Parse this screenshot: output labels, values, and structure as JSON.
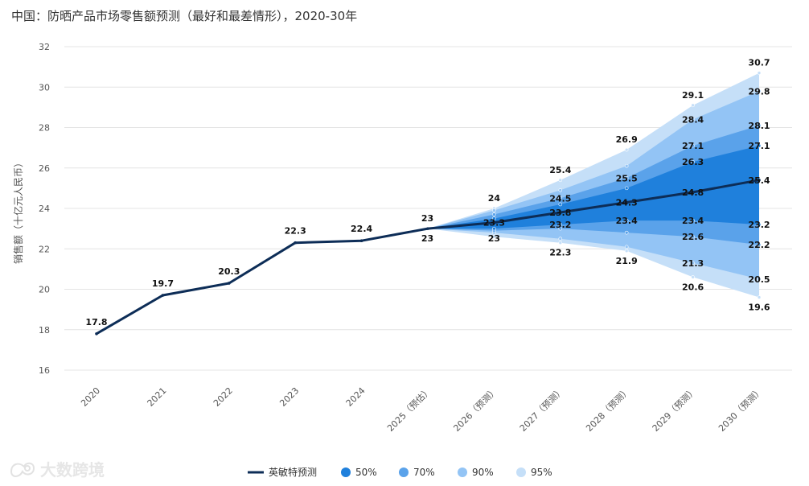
{
  "chart_data": {
    "type": "area",
    "title": "中国：防晒产品市场零售额预测（最好和最差情形），2020-30年",
    "ylabel": "销售额（十亿元人民币）",
    "xlabel": "",
    "ylim": [
      16,
      32
    ],
    "yticks": [
      16,
      18,
      20,
      22,
      24,
      26,
      28,
      30,
      32
    ],
    "grid": true,
    "legend_position": "bottom",
    "categories": [
      "2020",
      "2021",
      "2022",
      "2023",
      "2024",
      "2025（预估）",
      "2026（预测）",
      "2027（预测）",
      "2028（预测）",
      "2029（预测）",
      "2030（预测）"
    ],
    "series": [
      {
        "name": "英敏特预测",
        "values": [
          17.8,
          19.7,
          20.3,
          22.3,
          22.4,
          23,
          23.3,
          23.8,
          24.3,
          24.8,
          25.4
        ]
      }
    ],
    "fan_bands": [
      {
        "name": "95%",
        "color": "#c5dff8",
        "upper": [
          null,
          null,
          null,
          null,
          null,
          23,
          24,
          25.4,
          26.9,
          29.1,
          30.7
        ],
        "lower": [
          null,
          null,
          null,
          null,
          null,
          23,
          22.6,
          22.3,
          21.9,
          20.6,
          19.6
        ]
      },
      {
        "name": "90%",
        "color": "#93c4f5",
        "upper": [
          null,
          null,
          null,
          null,
          null,
          23,
          23.9,
          24.9,
          26.1,
          28.4,
          29.8
        ],
        "lower": [
          null,
          null,
          null,
          null,
          null,
          23,
          22.8,
          22.5,
          22.1,
          21.3,
          20.5
        ]
      },
      {
        "name": "70%",
        "color": "#5aa2ea",
        "upper": [
          null,
          null,
          null,
          null,
          null,
          23,
          23.7,
          24.5,
          25.5,
          27.1,
          28.1
        ],
        "lower": [
          null,
          null,
          null,
          null,
          null,
          23,
          22.9,
          23.0,
          22.8,
          22.6,
          22.2
        ]
      },
      {
        "name": "50%",
        "color": "#1f80dc",
        "upper": [
          null,
          null,
          null,
          null,
          null,
          23,
          23.5,
          24.2,
          25.0,
          26.3,
          27.1
        ],
        "lower": [
          null,
          null,
          null,
          null,
          null,
          23,
          23.0,
          23.2,
          23.4,
          23.4,
          23.2
        ]
      }
    ],
    "data_labels": [
      {
        "i": 0,
        "v": 17.8,
        "text": "17.8"
      },
      {
        "i": 1,
        "v": 19.7,
        "text": "19.7"
      },
      {
        "i": 2,
        "v": 20.3,
        "text": "20.3"
      },
      {
        "i": 3,
        "v": 22.3,
        "text": "22.3"
      },
      {
        "i": 4,
        "v": 22.4,
        "text": "22.4"
      },
      {
        "i": 5,
        "v": 23,
        "text": "23"
      },
      {
        "i": 5,
        "v": 23,
        "text": "23"
      },
      {
        "i": 6,
        "v": 24,
        "text": "24"
      },
      {
        "i": 6,
        "v": 23.3,
        "text": "23.3"
      },
      {
        "i": 6,
        "v": 23,
        "text": "23"
      },
      {
        "i": 7,
        "v": 25.4,
        "text": "25.4"
      },
      {
        "i": 7,
        "v": 24.5,
        "text": "24.5"
      },
      {
        "i": 7,
        "v": 23.8,
        "text": "23.8"
      },
      {
        "i": 7,
        "v": 23.2,
        "text": "23.2"
      },
      {
        "i": 7,
        "v": 22.3,
        "text": "22.3"
      },
      {
        "i": 8,
        "v": 26.9,
        "text": "26.9"
      },
      {
        "i": 8,
        "v": 25.5,
        "text": "25.5"
      },
      {
        "i": 8,
        "v": 24.3,
        "text": "24.3"
      },
      {
        "i": 8,
        "v": 23.4,
        "text": "23.4"
      },
      {
        "i": 8,
        "v": 21.9,
        "text": "21.9"
      },
      {
        "i": 9,
        "v": 29.1,
        "text": "29.1"
      },
      {
        "i": 9,
        "v": 28.4,
        "text": "28.4"
      },
      {
        "i": 9,
        "v": 27.1,
        "text": "27.1"
      },
      {
        "i": 9,
        "v": 26.3,
        "text": "26.3"
      },
      {
        "i": 9,
        "v": 24.8,
        "text": "24.8"
      },
      {
        "i": 9,
        "v": 23.4,
        "text": "23.4"
      },
      {
        "i": 9,
        "v": 22.6,
        "text": "22.6"
      },
      {
        "i": 9,
        "v": 21.3,
        "text": "21.3"
      },
      {
        "i": 9,
        "v": 20.6,
        "text": "20.6"
      },
      {
        "i": 10,
        "v": 30.7,
        "text": "30.7"
      },
      {
        "i": 10,
        "v": 29.8,
        "text": "29.8"
      },
      {
        "i": 10,
        "v": 28.1,
        "text": "28.1"
      },
      {
        "i": 10,
        "v": 27.1,
        "text": "27.1"
      },
      {
        "i": 10,
        "v": 25.4,
        "text": "25.4"
      },
      {
        "i": 10,
        "v": 23.2,
        "text": "23.2"
      },
      {
        "i": 10,
        "v": 22.2,
        "text": "22.2"
      },
      {
        "i": 10,
        "v": 20.5,
        "text": "20.5"
      },
      {
        "i": 10,
        "v": 19.6,
        "text": "19.6"
      }
    ],
    "legend": [
      {
        "label": "英敏特预测",
        "kind": "line",
        "color": "#0d2d57"
      },
      {
        "label": "50%",
        "kind": "dot",
        "color": "#1f80dc"
      },
      {
        "label": "70%",
        "kind": "dot",
        "color": "#5aa2ea"
      },
      {
        "label": "90%",
        "kind": "dot",
        "color": "#93c4f5"
      },
      {
        "label": "95%",
        "kind": "dot",
        "color": "#c5dff8"
      }
    ],
    "line_color": "#0d2d57"
  },
  "watermark": {
    "text": "大数跨境",
    "icon": "brand-logo-icon"
  }
}
